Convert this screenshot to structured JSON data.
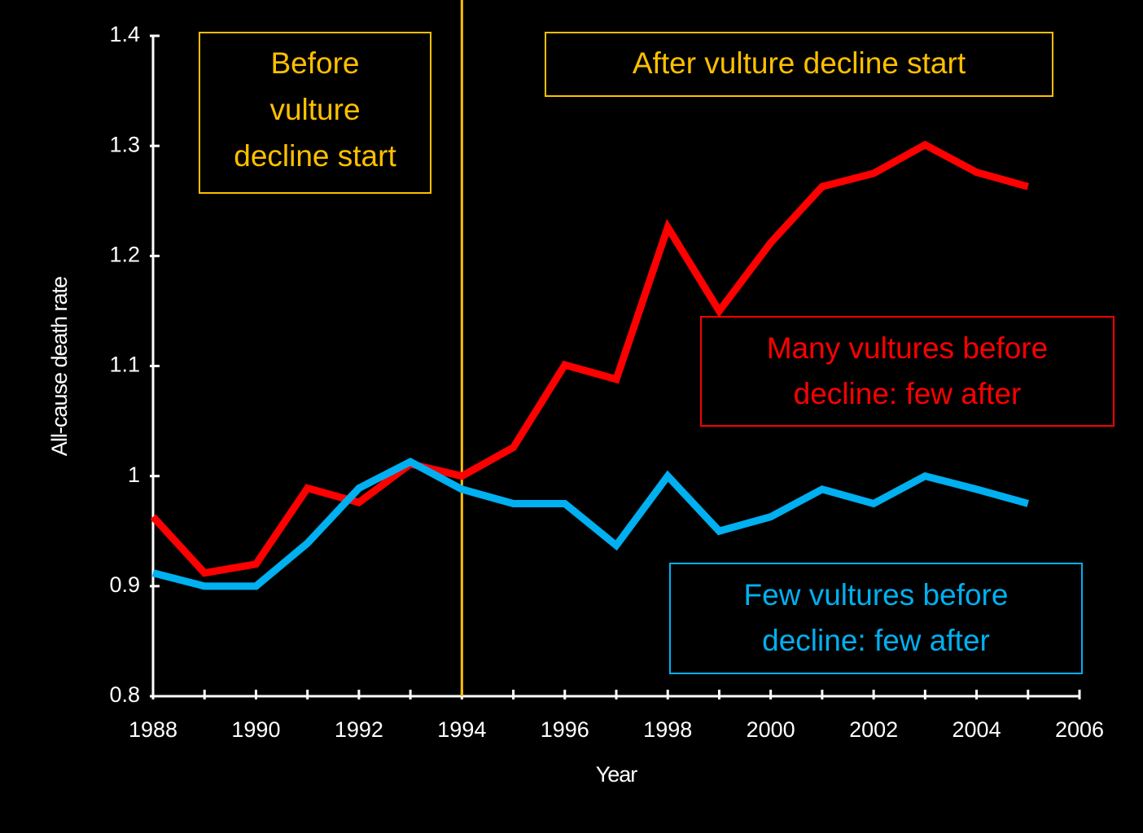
{
  "chart_data": {
    "type": "line",
    "x_label": "Year",
    "y_label": "All-cause death rate",
    "x": [
      1988,
      1989,
      1990,
      1991,
      1992,
      1993,
      1994,
      1995,
      1996,
      1997,
      1998,
      1999,
      2000,
      2001,
      2002,
      2003,
      2004,
      2005
    ],
    "series": [
      {
        "name": "Many vultures before decline: few after",
        "color": "#ff0000",
        "values": [
          0.963,
          0.912,
          0.92,
          0.989,
          0.976,
          1.011,
          1.0,
          1.026,
          1.101,
          1.088,
          1.226,
          1.15,
          1.212,
          1.263,
          1.275,
          1.301,
          1.276,
          1.263
        ]
      },
      {
        "name": "Few vultures before decline: few after",
        "color": "#00b0f0",
        "values": [
          0.912,
          0.9,
          0.9,
          0.939,
          0.989,
          1.013,
          0.988,
          0.975,
          0.975,
          0.937,
          1.0,
          0.95,
          0.963,
          0.988,
          0.975,
          1.0,
          0.988,
          0.975
        ]
      }
    ],
    "xlim": [
      1988,
      2006
    ],
    "xticks": [
      1988,
      1990,
      1992,
      1994,
      1996,
      1998,
      2000,
      2002,
      2004,
      2006
    ],
    "ylim": [
      0.8,
      1.4
    ],
    "yticks": [
      0.8,
      0.9,
      1,
      1.1,
      1.2,
      1.3,
      1.4
    ],
    "vline": {
      "x": 1994,
      "color": "#ffc000"
    },
    "annotations": [
      {
        "lines": [
          "Before",
          "vulture",
          "decline start"
        ],
        "color": "#ffc000"
      },
      {
        "lines": [
          "After vulture decline start"
        ],
        "color": "#ffc000"
      },
      {
        "lines": [
          "Many vultures before",
          "decline: few after"
        ],
        "color": "#ff0000"
      },
      {
        "lines": [
          "Few vultures before",
          "decline: few after"
        ],
        "color": "#00b0f0"
      }
    ]
  }
}
